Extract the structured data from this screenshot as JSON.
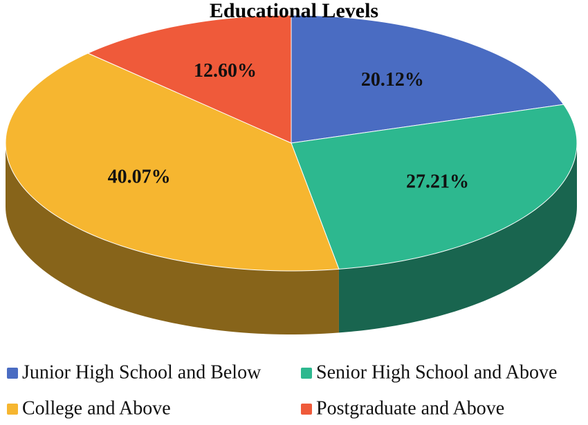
{
  "chart_data": {
    "type": "pie",
    "title": "Educational Levels",
    "categories": [
      "Junior High School and Below",
      "Senior High School and Above",
      "College and Above",
      "Postgraduate and Above"
    ],
    "values": [
      20.12,
      27.21,
      40.07,
      12.6
    ],
    "value_labels": [
      "20.12%",
      "27.21%",
      "40.07%",
      "12.60%"
    ],
    "colors": [
      "#4a6cc2",
      "#2db88f",
      "#f6b630",
      "#ef5a3a"
    ]
  }
}
